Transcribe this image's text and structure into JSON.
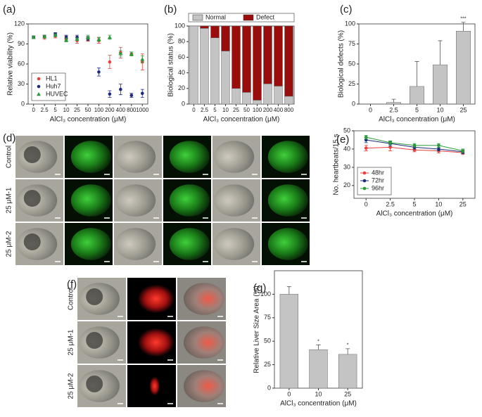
{
  "chart_data": [
    {
      "type": "scatter",
      "panel_label": "(a)",
      "ylabel": "Relative viability (%)",
      "xlabel": "AlCl₃ concentration (μM)",
      "categories": [
        "0",
        "2.5",
        "5",
        "10",
        "25",
        "50",
        "100",
        "200",
        "400",
        "800",
        "1000"
      ],
      "ylim": [
        0,
        120
      ],
      "yticks": [
        0,
        30,
        60,
        90,
        120
      ],
      "legend": "lower-left",
      "series": [
        {
          "name": "HL1",
          "color": "#e8413c",
          "values": [
            100,
            100,
            102,
            98,
            95,
            97,
            95,
            63,
            77,
            75,
            63
          ],
          "errors": [
            2,
            3,
            3,
            4,
            4,
            3,
            4,
            10,
            8,
            3,
            12
          ]
        },
        {
          "name": "Huh7",
          "color": "#1c2a7a",
          "values": [
            100,
            101,
            105,
            100,
            100,
            98,
            48,
            15,
            22,
            13,
            16
          ],
          "errors": [
            2,
            2,
            2,
            3,
            3,
            3,
            6,
            5,
            8,
            3,
            6
          ]
        },
        {
          "name": "HUVEC",
          "color": "#2a9a3a",
          "values": [
            100,
            101,
            103,
            96,
            97,
            100,
            97,
            100,
            76,
            75,
            67
          ],
          "errors": [
            2,
            2,
            2,
            3,
            2,
            3,
            3,
            3,
            4,
            3,
            5
          ]
        }
      ]
    },
    {
      "type": "bar",
      "panel_label": "(b)",
      "ylabel": "Biological status (%)",
      "xlabel": "AlCl₃ concentration (μM)",
      "categories": [
        "0",
        "2.5",
        "5",
        "10",
        "25",
        "50",
        "100",
        "200",
        "400",
        "800"
      ],
      "ylim": [
        0,
        100
      ],
      "yticks": [
        0,
        20,
        40,
        60,
        80,
        100
      ],
      "legend": "top-right",
      "stacked": true,
      "series": [
        {
          "name": "Normal",
          "color": "#c4c4c4",
          "values": [
            100,
            97,
            85,
            68,
            20,
            15,
            5,
            26,
            23,
            10
          ]
        },
        {
          "name": "Defect",
          "color": "#9a0d0d",
          "values": [
            0,
            3,
            15,
            32,
            80,
            85,
            95,
            74,
            77,
            90
          ]
        }
      ]
    },
    {
      "type": "bar",
      "panel_label": "(c)",
      "ylabel": "Biological defects (%)",
      "xlabel": "AlCl₃ concentration (μM)",
      "categories": [
        "0",
        "2.5",
        "5",
        "10",
        "25"
      ],
      "color": "#c4c4c4",
      "values": [
        0,
        2,
        22,
        49,
        91
      ],
      "errors": [
        0,
        4,
        31,
        30,
        11
      ],
      "value_annotations": [
        null,
        null,
        null,
        null,
        "***"
      ],
      "ylim": [
        0,
        100
      ],
      "yticks": [
        0,
        25,
        50,
        75,
        100
      ]
    },
    {
      "type": "line",
      "panel_label": "(e)",
      "ylabel": "No. heartbeats/15 s",
      "xlabel": "AlCl₃ concentration (μM)",
      "categories": [
        "0",
        "2.5",
        "5",
        "10",
        "25"
      ],
      "ylim": [
        13,
        50
      ],
      "yticks": [
        20,
        30,
        40,
        50
      ],
      "legend": "lower-left",
      "series": [
        {
          "name": "48hr",
          "color": "#e8413c",
          "values": [
            40.5,
            41,
            39.5,
            39,
            38
          ],
          "errors": [
            1.5,
            2,
            1,
            1.2,
            1
          ]
        },
        {
          "name": "72hr",
          "color": "#1c2a7a",
          "values": [
            45,
            43,
            41,
            40,
            38.5
          ],
          "errors": [
            1.5,
            1.2,
            1,
            1,
            1
          ]
        },
        {
          "name": "96hr",
          "color": "#2a9a3a",
          "values": [
            46.5,
            43.5,
            42,
            42,
            39
          ],
          "errors": [
            1,
            1,
            1,
            1,
            1
          ]
        }
      ]
    },
    {
      "type": "bar",
      "panel_label": "(g)",
      "ylabel": "Relative Liver Size Area (%)",
      "xlabel": "AlCl₃ concentration (μM)",
      "categories": [
        "0",
        "10",
        "25"
      ],
      "color": "#c4c4c4",
      "values": [
        100,
        41,
        36
      ],
      "errors": [
        8,
        5,
        6
      ],
      "value_annotations": [
        null,
        "*",
        "*"
      ],
      "ylim": [
        0,
        125
      ],
      "yticks": [
        0,
        25,
        50,
        75,
        100
      ]
    }
  ],
  "image_panels": [
    {
      "panel_label": "(d)",
      "row_labels": [
        "Control",
        "25 μM-1",
        "25 μM-2"
      ]
    },
    {
      "panel_label": "(f)",
      "row_labels": [
        "Control",
        "25 μM-1",
        "25 μM-2"
      ]
    }
  ]
}
